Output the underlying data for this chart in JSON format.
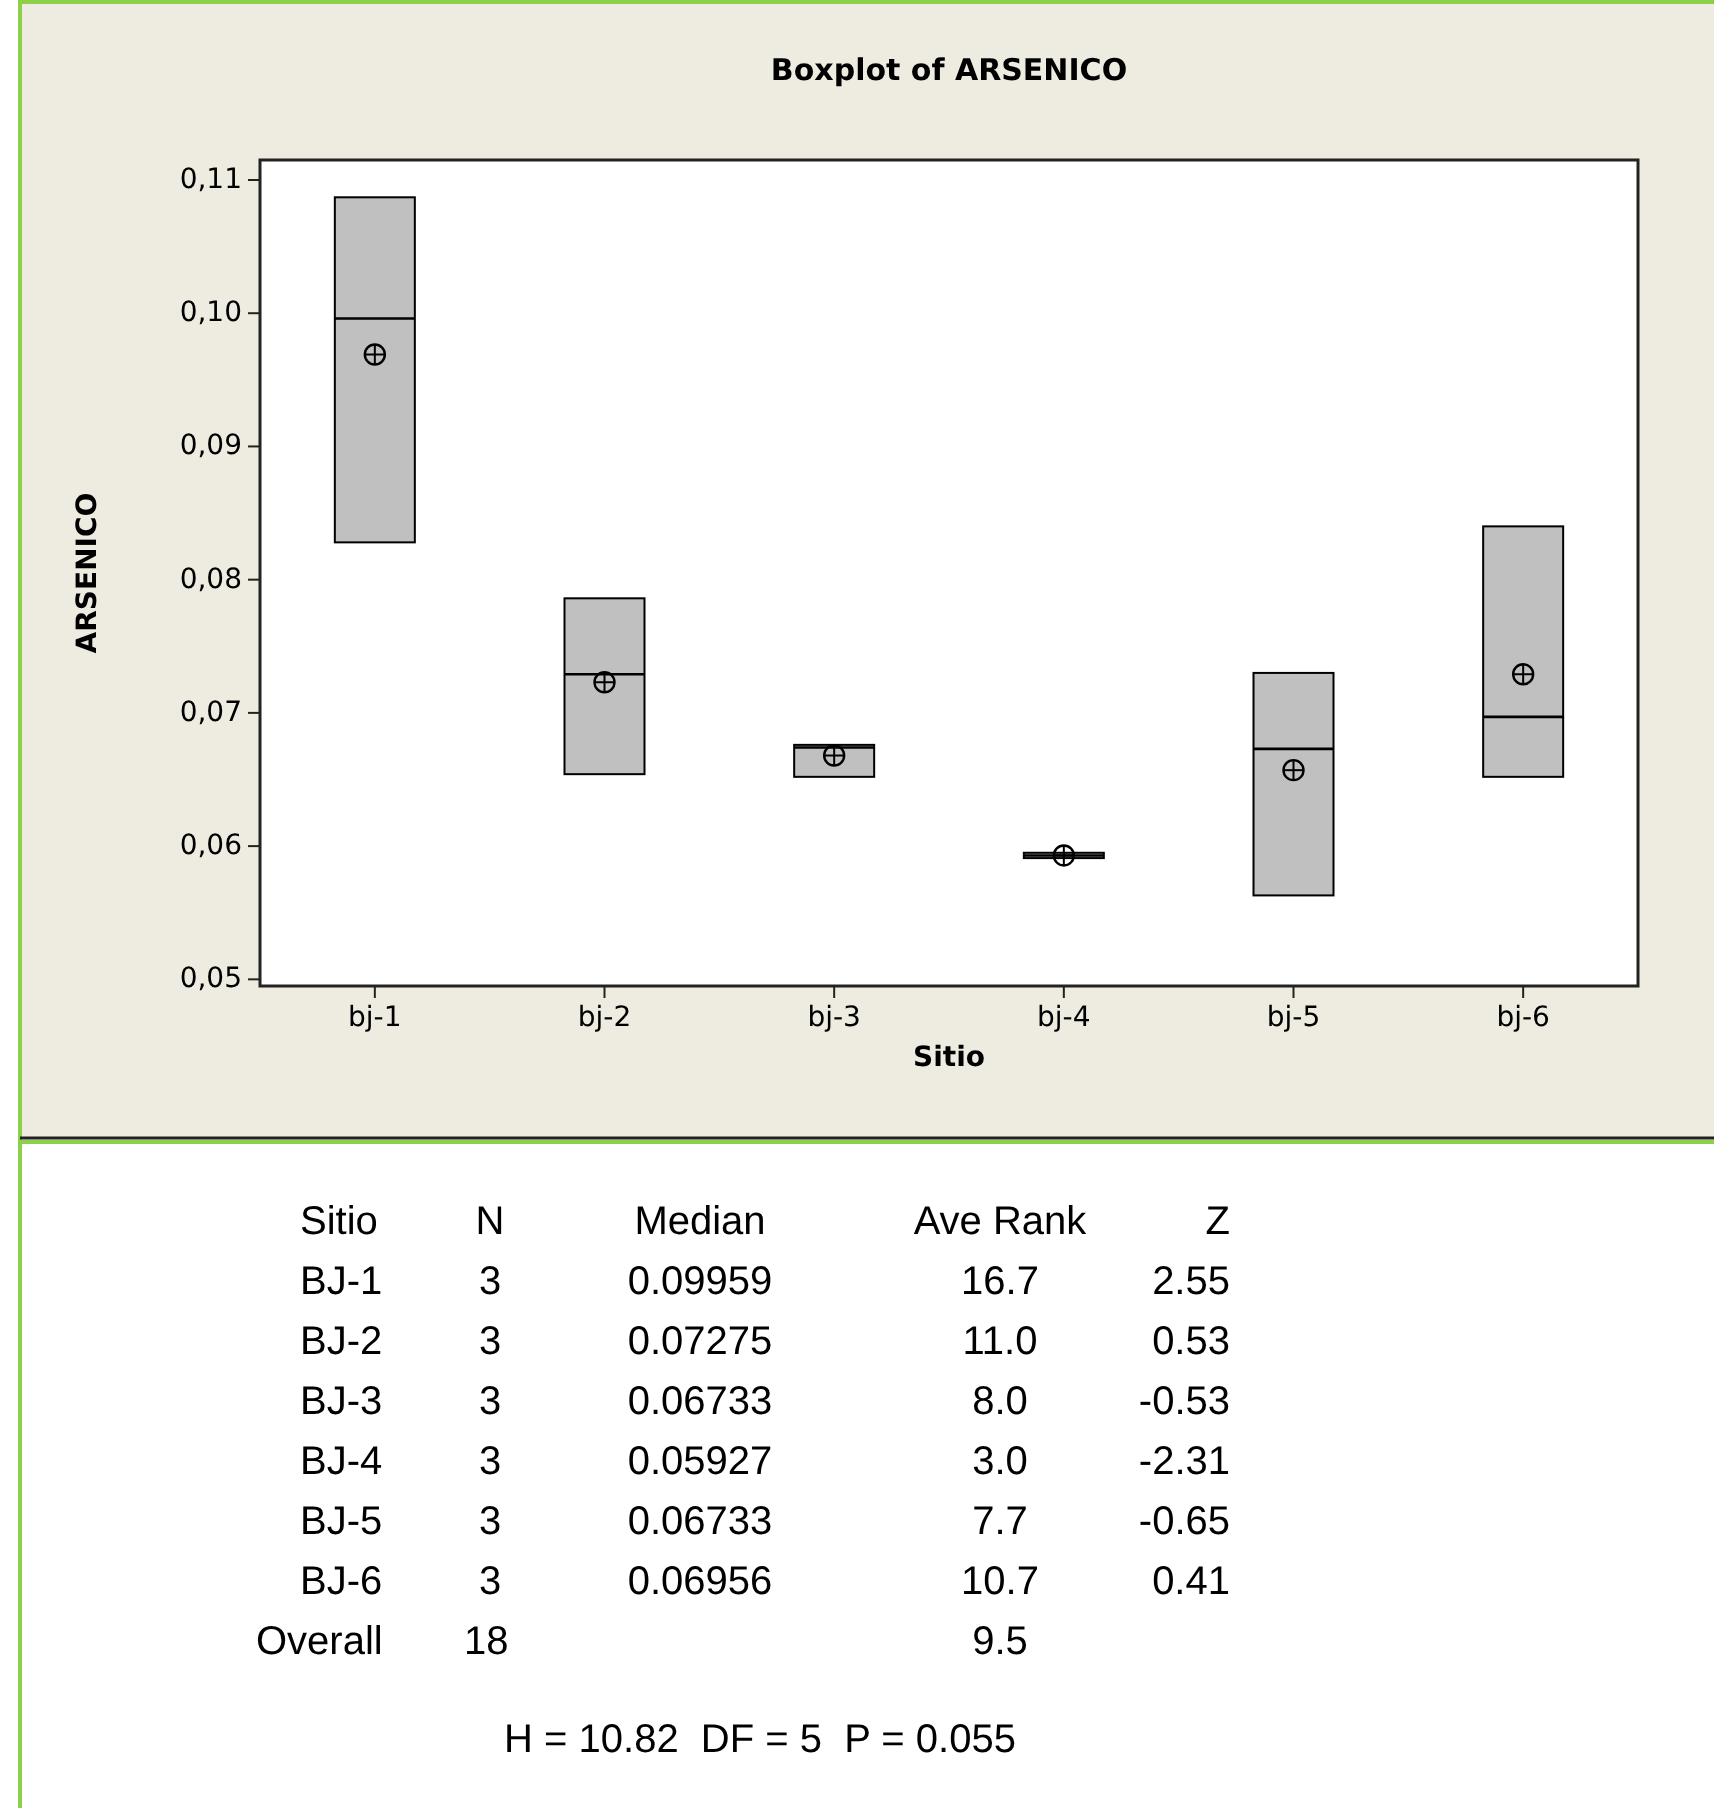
{
  "chart_data": {
    "type": "box",
    "title": "Boxplot of ARSENICO",
    "xlabel": "Sitio",
    "ylabel": "ARSENICO",
    "categories": [
      "bj-1",
      "bj-2",
      "bj-3",
      "bj-4",
      "bj-5",
      "bj-6"
    ],
    "boxes": [
      {
        "low": 0.0828,
        "q1": 0.0828,
        "median": 0.0996,
        "q3": 0.1087,
        "high": 0.1087,
        "mean": 0.0969
      },
      {
        "low": 0.0654,
        "q1": 0.0654,
        "median": 0.0729,
        "q3": 0.0786,
        "high": 0.0786,
        "mean": 0.0723
      },
      {
        "low": 0.0652,
        "q1": 0.0652,
        "median": 0.0674,
        "q3": 0.0676,
        "high": 0.0676,
        "mean": 0.0668
      },
      {
        "low": 0.0591,
        "q1": 0.0591,
        "median": 0.0593,
        "q3": 0.0595,
        "high": 0.0595,
        "mean": 0.0593
      },
      {
        "low": 0.0563,
        "q1": 0.0563,
        "median": 0.0673,
        "q3": 0.073,
        "high": 0.073,
        "mean": 0.0657
      },
      {
        "low": 0.0652,
        "q1": 0.0652,
        "median": 0.0697,
        "q3": 0.084,
        "high": 0.084,
        "mean": 0.0729
      }
    ],
    "color": "#c0c0c0",
    "ylim": [
      0.0495,
      0.1115
    ],
    "yticks": [
      {
        "value": 0.05,
        "label": "0,05"
      },
      {
        "value": 0.06,
        "label": "0,06"
      },
      {
        "value": 0.07,
        "label": "0,07"
      },
      {
        "value": 0.08,
        "label": "0,08"
      },
      {
        "value": 0.09,
        "label": "0,09"
      },
      {
        "value": 0.1,
        "label": "0,10"
      },
      {
        "value": 0.11,
        "label": "0,11"
      }
    ],
    "grid": false,
    "annotations": [
      "Sitio\tN\tMedian\tAve Rank\tZ",
      "BJ-1\t3\t0.09959\t16.7\t2.55",
      "BJ-2\t3\t0.07275\t11.0\t0.53",
      "BJ-3\t3\t0.06733\t8.0\t-0.53",
      "BJ-4\t3\t0.05927\t3.0\t-2.31",
      "BJ-5\t3\t0.06733\t7.7\t-0.65",
      "BJ-6\t3\t0.06956\t10.7\t0.41",
      "Overall\t18\t\t9.5",
      "H = 10.82  DF = 5  P = 0.055"
    ]
  }
}
